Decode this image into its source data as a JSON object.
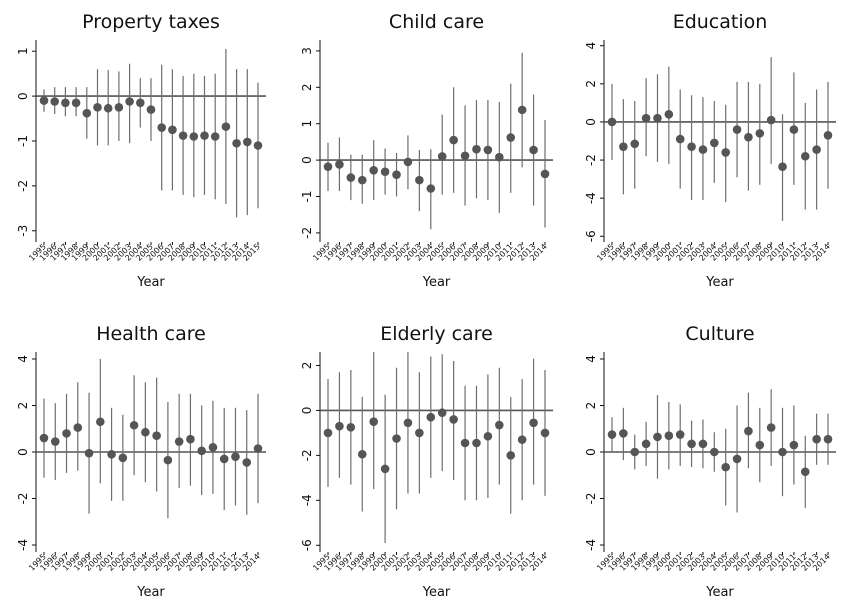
{
  "chart_data": [
    {
      "type": "scatter",
      "title": "Property taxes",
      "xlabel": "Year",
      "x": [
        "1995",
        "1996",
        "1997",
        "1998",
        "1999",
        "2000",
        "2001",
        "2002",
        "2003",
        "2004",
        "2005",
        "2006",
        "2007",
        "2008",
        "2009",
        "2010",
        "2011",
        "2012",
        "2013",
        "2014",
        "2015"
      ],
      "y": [
        -0.1,
        -0.12,
        -0.15,
        -0.15,
        -0.38,
        -0.25,
        -0.27,
        -0.25,
        -0.12,
        -0.15,
        -0.3,
        -0.7,
        -0.75,
        -0.88,
        -0.9,
        -0.88,
        -0.9,
        -0.68,
        -1.05,
        -1.02,
        -1.1
      ],
      "lower": [
        -0.35,
        -0.4,
        -0.45,
        -0.45,
        -0.95,
        -1.1,
        -1.1,
        -1.0,
        -1.05,
        -0.7,
        -1.0,
        -2.1,
        -2.1,
        -2.2,
        -2.25,
        -2.2,
        -2.3,
        -2.4,
        -2.7,
        -2.65,
        -2.5
      ],
      "upper": [
        0.15,
        0.2,
        0.2,
        0.2,
        0.2,
        0.6,
        0.58,
        0.55,
        0.72,
        0.4,
        0.4,
        0.7,
        0.6,
        0.45,
        0.5,
        0.45,
        0.5,
        1.05,
        0.6,
        0.6,
        0.3
      ],
      "yticks": [
        1,
        0,
        -1,
        -2,
        -3
      ],
      "ylim": [
        -3.25,
        1.25
      ],
      "grid": false
    },
    {
      "type": "scatter",
      "title": "Child care",
      "xlabel": "Year",
      "x": [
        "1995",
        "1996",
        "1997",
        "1998",
        "1999",
        "2000",
        "2001",
        "2002",
        "2003",
        "2004",
        "2005",
        "2006",
        "2007",
        "2008",
        "2009",
        "2010",
        "2011",
        "2012",
        "2013",
        "2014"
      ],
      "y": [
        -0.18,
        -0.12,
        -0.48,
        -0.55,
        -0.28,
        -0.32,
        -0.4,
        -0.05,
        -0.55,
        -0.78,
        0.1,
        0.55,
        0.12,
        0.3,
        0.28,
        0.08,
        0.62,
        1.38,
        0.28,
        -0.38
      ],
      "lower": [
        -0.85,
        -0.85,
        -1.1,
        -1.2,
        -1.1,
        -0.95,
        -1.0,
        -0.8,
        -1.4,
        -1.9,
        -0.95,
        -0.9,
        -1.25,
        -1.05,
        -1.1,
        -1.45,
        -0.9,
        -0.2,
        -1.25,
        -1.85
      ],
      "upper": [
        0.48,
        0.62,
        0.15,
        0.15,
        0.55,
        0.32,
        0.2,
        0.68,
        0.28,
        0.3,
        1.25,
        2.0,
        1.5,
        1.65,
        1.65,
        1.6,
        2.1,
        2.95,
        1.8,
        1.1
      ],
      "yticks": [
        3,
        2,
        1,
        0,
        -1,
        -2
      ],
      "ylim": [
        -2.25,
        3.3
      ],
      "grid": false
    },
    {
      "type": "scatter",
      "title": "Education",
      "xlabel": "Year",
      "x": [
        "1995",
        "1996",
        "1997",
        "1998",
        "1999",
        "2000",
        "2001",
        "2002",
        "2003",
        "2004",
        "2005",
        "2006",
        "2007",
        "2008",
        "2009",
        "2010",
        "2011",
        "2012",
        "2013",
        "2014"
      ],
      "y": [
        0,
        -1.3,
        -1.15,
        0.2,
        0.2,
        0.4,
        -0.9,
        -1.3,
        -1.45,
        -1.1,
        -1.6,
        -0.4,
        -0.8,
        -0.6,
        0.1,
        -2.35,
        -0.4,
        -1.8,
        -1.45,
        -0.7
      ],
      "lower": [
        -2.0,
        -3.8,
        -3.5,
        -1.8,
        -2.1,
        -2.2,
        -3.5,
        -4.1,
        -4.1,
        -3.2,
        -4.2,
        -2.9,
        -3.6,
        -3.3,
        -2.2,
        -5.2,
        -3.3,
        -4.6,
        -4.6,
        -3.5
      ],
      "upper": [
        2.0,
        1.2,
        1.1,
        2.3,
        2.5,
        2.9,
        1.7,
        1.4,
        1.3,
        1.1,
        0.9,
        2.1,
        2.1,
        2.0,
        3.4,
        0.4,
        2.6,
        1.0,
        1.7,
        2.1
      ],
      "yticks": [
        4,
        2,
        0,
        -2,
        -4,
        -6
      ],
      "ylim": [
        -6.3,
        4.3
      ],
      "grid": false
    },
    {
      "type": "scatter",
      "title": "Health care",
      "xlabel": "Year",
      "x": [
        "1995",
        "1996",
        "1997",
        "1998",
        "1999",
        "2000",
        "2001",
        "2002",
        "2003",
        "2004",
        "2005",
        "2006",
        "2007",
        "2008",
        "2009",
        "2010",
        "2011",
        "2012",
        "2013",
        "2014"
      ],
      "y": [
        0.6,
        0.45,
        0.8,
        1.05,
        -0.05,
        1.3,
        -0.1,
        -0.25,
        1.15,
        0.85,
        0.7,
        -0.35,
        0.45,
        0.55,
        0.05,
        0.2,
        -0.3,
        -0.2,
        -0.45,
        0.15
      ],
      "lower": [
        -1.1,
        -1.2,
        -0.9,
        -0.8,
        -2.65,
        -1.35,
        -2.1,
        -2.1,
        -1.0,
        -1.3,
        -1.7,
        -2.85,
        -1.55,
        -1.45,
        -1.85,
        -1.8,
        -2.5,
        -2.3,
        -2.7,
        -2.2
      ],
      "upper": [
        2.3,
        2.1,
        2.5,
        3.0,
        2.55,
        4.0,
        1.9,
        1.6,
        3.3,
        3.0,
        3.2,
        2.15,
        2.5,
        2.5,
        2.0,
        2.2,
        1.9,
        1.9,
        1.8,
        2.5
      ],
      "yticks": [
        4,
        2,
        0,
        -2,
        -4
      ],
      "ylim": [
        -4.3,
        4.3
      ],
      "grid": false
    },
    {
      "type": "scatter",
      "title": "Elderly care",
      "xlabel": "Year",
      "x": [
        "1995",
        "1996",
        "1997",
        "1998",
        "1999",
        "2000",
        "2001",
        "2002",
        "2003",
        "2004",
        "2005",
        "2006",
        "2007",
        "2008",
        "2009",
        "2010",
        "2011",
        "2012",
        "2013",
        "2014"
      ],
      "y": [
        -1.0,
        -0.7,
        -0.75,
        -1.95,
        -0.5,
        -2.6,
        -1.25,
        -0.55,
        -1.0,
        -0.3,
        -0.1,
        -0.4,
        -1.45,
        -1.45,
        -1.15,
        -0.65,
        -2.0,
        -1.3,
        -0.55,
        -1.0
      ],
      "lower": [
        -3.4,
        -3.0,
        -3.3,
        -4.5,
        -3.5,
        -5.9,
        -4.4,
        -3.7,
        -3.7,
        -3.0,
        -2.7,
        -3.1,
        -4.0,
        -4.0,
        -3.9,
        -3.3,
        -4.6,
        -4.0,
        -3.3,
        -3.8
      ],
      "upper": [
        1.4,
        1.7,
        1.8,
        0.6,
        2.6,
        0.7,
        1.9,
        2.6,
        1.7,
        2.4,
        2.5,
        2.2,
        1.1,
        1.1,
        1.6,
        1.9,
        0.6,
        1.4,
        2.3,
        1.8
      ],
      "yticks": [
        2,
        0,
        -2,
        -4,
        -6
      ],
      "ylim": [
        -6.3,
        2.6
      ],
      "grid": false
    },
    {
      "type": "scatter",
      "title": "Culture",
      "xlabel": "Year",
      "x": [
        "1995",
        "1996",
        "1997",
        "1998",
        "1999",
        "2000",
        "2001",
        "2002",
        "2003",
        "2004",
        "2005",
        "2006",
        "2007",
        "2008",
        "2009",
        "2010",
        "2011",
        "2012",
        "2013",
        "2014"
      ],
      "y": [
        0.75,
        0.8,
        0.0,
        0.35,
        0.65,
        0.7,
        0.75,
        0.35,
        0.35,
        0.0,
        -0.65,
        -0.3,
        0.9,
        0.3,
        1.05,
        0.0,
        0.3,
        -0.85,
        0.55,
        0.55
      ],
      "lower": [
        0.0,
        -0.35,
        -0.75,
        -0.6,
        -1.15,
        -0.75,
        -0.6,
        -0.65,
        -0.7,
        -0.85,
        -2.3,
        -2.6,
        -0.7,
        -1.3,
        -0.6,
        -1.9,
        -1.4,
        -2.4,
        -0.55,
        -0.55
      ],
      "upper": [
        1.5,
        1.9,
        0.75,
        1.3,
        2.45,
        2.15,
        2.05,
        1.35,
        1.4,
        0.85,
        1.0,
        2.0,
        2.55,
        1.9,
        2.7,
        1.9,
        2.0,
        0.7,
        1.65,
        1.65
      ],
      "yticks": [
        4,
        2,
        0,
        -2,
        -4
      ],
      "ylim": [
        -4.3,
        4.3
      ],
      "grid": false
    }
  ],
  "colors": {
    "marker": "#555555",
    "ci_line": "#6e6e6e",
    "zero_line": "#555555",
    "axis": "#111111"
  }
}
